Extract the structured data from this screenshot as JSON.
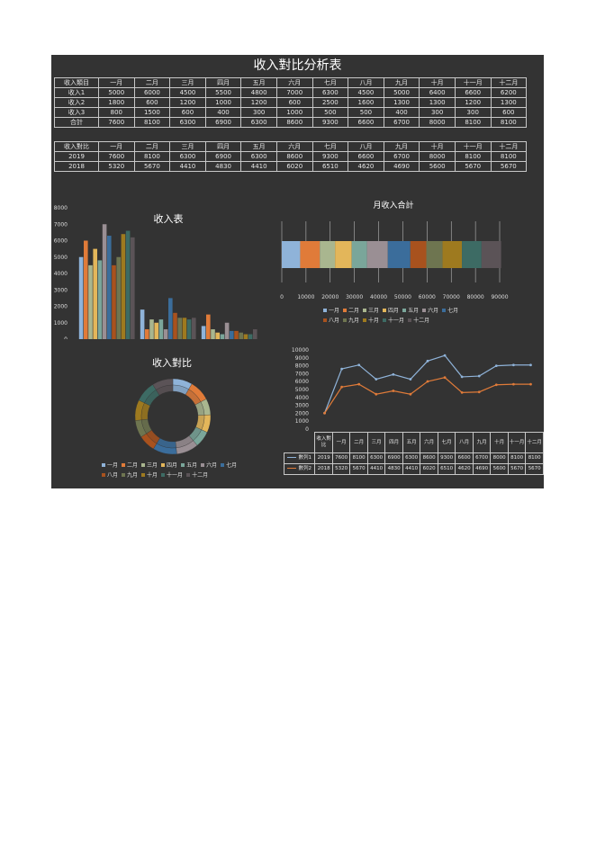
{
  "title": "收入對比分析表",
  "table1": {
    "header": [
      "收入類目",
      "一月",
      "二月",
      "三月",
      "四月",
      "五月",
      "六月",
      "七月",
      "八月",
      "九月",
      "十月",
      "十一月",
      "十二月"
    ],
    "rows": [
      [
        "收入1",
        "5000",
        "6000",
        "4500",
        "5500",
        "4800",
        "7000",
        "6300",
        "4500",
        "5000",
        "6400",
        "6600",
        "6200"
      ],
      [
        "收入2",
        "1800",
        "600",
        "1200",
        "1000",
        "1200",
        "600",
        "2500",
        "1600",
        "1300",
        "1300",
        "1200",
        "1300"
      ],
      [
        "收入3",
        "800",
        "1500",
        "600",
        "400",
        "300",
        "1000",
        "500",
        "500",
        "400",
        "300",
        "300",
        "600"
      ],
      [
        "合計",
        "7600",
        "8100",
        "6300",
        "6900",
        "6300",
        "8600",
        "9300",
        "6600",
        "6700",
        "8000",
        "8100",
        "8100"
      ]
    ]
  },
  "table2": {
    "header": [
      "收入對比",
      "一月",
      "二月",
      "三月",
      "四月",
      "五月",
      "六月",
      "七月",
      "八月",
      "九月",
      "十月",
      "十一月",
      "十二月"
    ],
    "rows": [
      [
        "2019",
        "7600",
        "8100",
        "6300",
        "6900",
        "6300",
        "8600",
        "9300",
        "6600",
        "6700",
        "8000",
        "8100",
        "8100"
      ],
      [
        "2018",
        "5320",
        "5670",
        "4410",
        "4830",
        "4410",
        "6020",
        "6510",
        "4620",
        "4690",
        "5600",
        "5670",
        "5670"
      ]
    ]
  },
  "colors": [
    "#8fb3d9",
    "#e07b39",
    "#a9b68f",
    "#e3b65a",
    "#7aa69a",
    "#9a8f94",
    "#3b6d9b",
    "#a8521e",
    "#6e7550",
    "#9e7a1f",
    "#3d6b64",
    "#5b5357"
  ],
  "chart_data": [
    {
      "type": "bar",
      "title": "收入表",
      "categories": [
        "收入1",
        "收入2",
        "收入3"
      ],
      "ylim": [
        0,
        8000
      ],
      "yticks": [
        "0",
        "1000",
        "2000",
        "3000",
        "4000",
        "5000",
        "6000",
        "7000",
        "8000"
      ],
      "series": [
        {
          "name": "一月",
          "values": [
            5000,
            1800,
            800
          ]
        },
        {
          "name": "二月",
          "values": [
            6000,
            600,
            1500
          ]
        },
        {
          "name": "三月",
          "values": [
            4500,
            1200,
            600
          ]
        },
        {
          "name": "四月",
          "values": [
            5500,
            1000,
            400
          ]
        },
        {
          "name": "五月",
          "values": [
            4800,
            1200,
            300
          ]
        },
        {
          "name": "六月",
          "values": [
            7000,
            600,
            1000
          ]
        },
        {
          "name": "七月",
          "values": [
            6300,
            2500,
            500
          ]
        },
        {
          "name": "八月",
          "values": [
            4500,
            1600,
            500
          ]
        },
        {
          "name": "九月",
          "values": [
            5000,
            1300,
            400
          ]
        },
        {
          "name": "十月",
          "values": [
            6400,
            1300,
            300
          ]
        },
        {
          "name": "十一月",
          "values": [
            6600,
            1200,
            300
          ]
        },
        {
          "name": "十二月",
          "values": [
            6200,
            1300,
            600
          ]
        }
      ]
    },
    {
      "type": "bar",
      "stacked": true,
      "orientation": "horizontal",
      "title": "月收入合計",
      "xlim": [
        0,
        90000
      ],
      "xticks": [
        "0",
        "10000",
        "20000",
        "30000",
        "40000",
        "50000",
        "60000",
        "70000",
        "80000",
        "90000"
      ],
      "series": [
        {
          "name": "一月",
          "values": [
            7600
          ]
        },
        {
          "name": "二月",
          "values": [
            8100
          ]
        },
        {
          "name": "三月",
          "values": [
            6300
          ]
        },
        {
          "name": "四月",
          "values": [
            6900
          ]
        },
        {
          "name": "五月",
          "values": [
            6300
          ]
        },
        {
          "name": "六月",
          "values": [
            8600
          ]
        },
        {
          "name": "七月",
          "values": [
            9300
          ]
        },
        {
          "name": "八月",
          "values": [
            6600
          ]
        },
        {
          "name": "九月",
          "values": [
            6700
          ]
        },
        {
          "name": "十月",
          "values": [
            8000
          ]
        },
        {
          "name": "十一月",
          "values": [
            8100
          ]
        },
        {
          "name": "十二月",
          "values": [
            8100
          ]
        }
      ],
      "legend": [
        "一月",
        "二月",
        "三月",
        "四月",
        "五月",
        "六月",
        "七月",
        "八月",
        "九月",
        "十月",
        "十一月",
        "十二月"
      ]
    },
    {
      "type": "pie",
      "donut": true,
      "title": "收入對比",
      "rings": [
        {
          "name": "2019",
          "values": [
            7600,
            8100,
            6300,
            6900,
            6300,
            8600,
            9300,
            6600,
            6700,
            8000,
            8100,
            8100
          ]
        },
        {
          "name": "2018",
          "values": [
            5320,
            5670,
            4410,
            4830,
            4410,
            6020,
            6510,
            4620,
            4690,
            5600,
            5670,
            5670
          ]
        }
      ],
      "legend": [
        "一月",
        "二月",
        "三月",
        "四月",
        "五月",
        "六月",
        "七月",
        "八月",
        "九月",
        "十月",
        "十一月",
        "十二月"
      ]
    },
    {
      "type": "line",
      "title": "",
      "ylim": [
        0,
        10000
      ],
      "yticks": [
        "0",
        "1000",
        "2000",
        "3000",
        "4000",
        "5000",
        "6000",
        "7000",
        "8000",
        "9000",
        "10000"
      ],
      "categories": [
        "收入對比",
        "一月",
        "二月",
        "三月",
        "四月",
        "五月",
        "六月",
        "七月",
        "八月",
        "九月",
        "十月",
        "十一月",
        "十二月"
      ],
      "series": [
        {
          "name": "數列1",
          "color": "#8fb3d9",
          "values": [
            2019,
            7600,
            8100,
            6300,
            6900,
            6300,
            8600,
            9300,
            6600,
            6700,
            8000,
            8100,
            8100
          ]
        },
        {
          "name": "數列2",
          "color": "#e07b39",
          "values": [
            2018,
            5320,
            5670,
            4410,
            4830,
            4410,
            6020,
            6510,
            4620,
            4690,
            5600,
            5670,
            5670
          ]
        }
      ]
    }
  ]
}
